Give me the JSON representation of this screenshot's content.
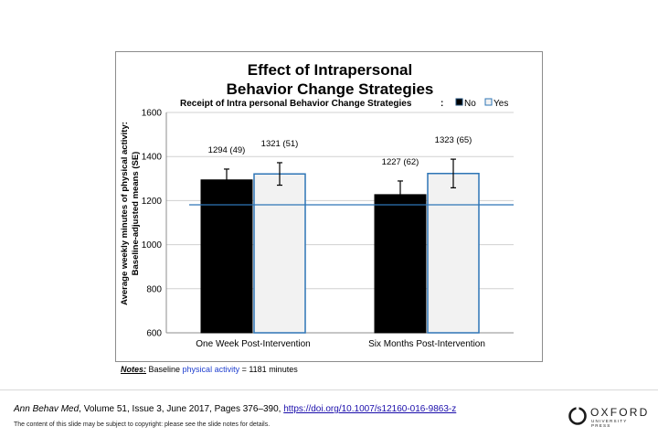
{
  "chart_data": {
    "type": "bar",
    "title_line1": "Effect of Intrapersonal",
    "title_line2": "Behavior Change Strategies",
    "legend_title": "Receipt of Intra personal Behavior Change Strategies",
    "legend_sep": ":",
    "ylabel_line1": "Average weekly minutes of physical activity:",
    "ylabel_line2": "Baseline-adjusted means (SE)",
    "ylim": [
      600,
      1600
    ],
    "yticks": [
      "600",
      "800",
      "1000",
      "1200",
      "1400",
      "1600"
    ],
    "categories": [
      "One Week Post-Intervention",
      "Six Months Post-Intervention"
    ],
    "series": [
      {
        "name": "No",
        "color": "#000000",
        "values": [
          1294,
          1227
        ],
        "errors": [
          49,
          62
        ],
        "labels": [
          "1294 (49)",
          "1227 (62)"
        ]
      },
      {
        "name": "Yes",
        "color": "#f2f2f2",
        "edge": "#2e75b6",
        "values": [
          1321,
          1323
        ],
        "errors": [
          51,
          65
        ],
        "labels": [
          "1321 (51)",
          "1323 (65)"
        ]
      }
    ],
    "reference_line": {
      "value": 1181,
      "color": "#2e75b6"
    },
    "grid": true,
    "legend_position": "top-right"
  },
  "notes": {
    "label": "Notes:",
    "text_before": " Baseline ",
    "link_text": "physical activity",
    "text_after": " = 1181 minutes"
  },
  "citation": {
    "journal": "Ann Behav Med",
    "details": ", Volume 51, Issue 3, June 2017, Pages 376–390, ",
    "doi": "https://doi.org/10.1007/s12160-016-9863-z"
  },
  "copyright": "The content of this slide may be subject to copyright: please see the slide notes for details.",
  "logo": {
    "word": "OXFORD",
    "sub": "UNIVERSITY PRESS"
  }
}
